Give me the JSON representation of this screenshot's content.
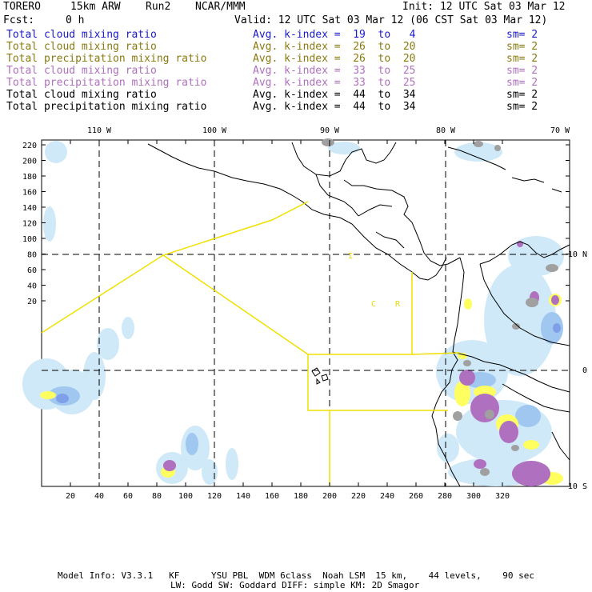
{
  "header": {
    "model": "TORERO",
    "resolution": "15km ARW",
    "run": "Run2",
    "org": "NCAR/MMM",
    "init": "Init: 12 UTC Sat 03 Mar 12",
    "fcst_label": "Fcst:",
    "fcst_value": "0 h",
    "valid": "Valid: 12 UTC Sat 03 Mar 12 (06 CST Sat 03 Mar 12)"
  },
  "legend": [
    {
      "field": "Total cloud mixing ratio",
      "kindex": "Avg. k-index =  19  to   4",
      "sm": "sm= 2",
      "color": "#1a1acc"
    },
    {
      "field": "Total cloud mixing ratio",
      "kindex": "Avg. k-index =  26  to  20",
      "sm": "sm= 2",
      "color": "#8a7a10"
    },
    {
      "field": "Total precipitation mixing ratio",
      "kindex": "Avg. k-index =  26  to  20",
      "sm": "sm= 2",
      "color": "#8a7a10"
    },
    {
      "field": "Total cloud mixing ratio",
      "kindex": "Avg. k-index =  33  to  25",
      "sm": "sm= 2",
      "color": "#b070c0"
    },
    {
      "field": "Total precipitation mixing ratio",
      "kindex": "Avg. k-index =  33  to  25",
      "sm": "sm= 2",
      "color": "#b070c0"
    },
    {
      "field": "Total cloud mixing ratio",
      "kindex": "Avg. k-index =  44  to  34",
      "sm": "sm= 2",
      "color": "#000000"
    },
    {
      "field": "Total precipitation mixing ratio",
      "kindex": "Avg. k-index =  44  to  34",
      "sm": "sm= 2",
      "color": "#000000"
    }
  ],
  "axes": {
    "top_lon_labels": [
      "110 W",
      "100 W",
      "90 W",
      "80 W",
      "70 W"
    ],
    "right_lat_labels": [
      "10 N",
      "0",
      "10 S"
    ],
    "y_ticks": [
      "220",
      "200",
      "180",
      "160",
      "140",
      "120",
      "100",
      "80",
      "60",
      "40",
      "20"
    ],
    "x_ticks": [
      "20",
      "40",
      "60",
      "80",
      "100",
      "120",
      "140",
      "160",
      "180",
      "200",
      "220",
      "240",
      "260",
      "280",
      "300",
      "320"
    ]
  },
  "map_labels": {
    "letter_c": "C",
    "letter_r": "R",
    "letter_i": "I"
  },
  "footer": {
    "line1": "Model Info: V3.3.1   KF      YSU PBL  WDM 6class  Noah LSM  15 km,    44 levels,    90 sec",
    "line2": "LW: Godd SW: Goddard DIFF: simple KM: 2D Smagor"
  },
  "colors": {
    "light_blue": "#cfe9f8",
    "mid_blue": "#9fc7f0",
    "dark_blue": "#7f9fe8",
    "yellow": "#ffff60",
    "purple": "#b070c0",
    "gray": "#a0a0a0",
    "flight_track": "#f0e000"
  }
}
